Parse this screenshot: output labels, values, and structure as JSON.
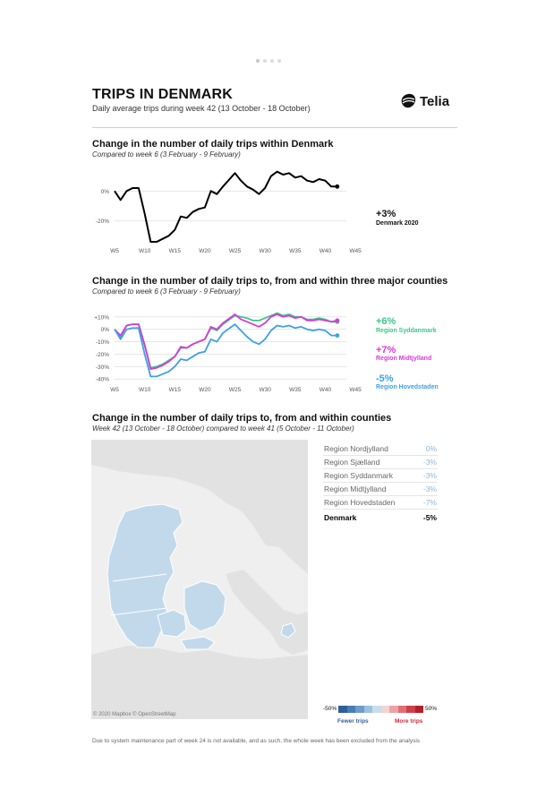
{
  "page": {
    "title": "TRIPS IN DENMARK",
    "subtitle": "Daily average trips during week 42 (13 October - 18 October)",
    "brand": "Telia",
    "footnote": "Due to system maintenance part of week 24 is not available, and as such, the whole week has been excluded from the analysis"
  },
  "section1": {
    "title": "Change in the number of daily trips within Denmark",
    "subtitle": "Compared to week 6 (3 February - 9 February)",
    "callout_value": "+3%",
    "callout_label": "Denmark 2020"
  },
  "section2": {
    "title": "Change in the number of daily trips to, from and within three major counties",
    "subtitle": "Compared to week 6 (3 February - 9 February)",
    "callouts": [
      {
        "value": "+6%",
        "label": "Region Syddanmark",
        "color": "#3dc68a"
      },
      {
        "value": "+7%",
        "label": "Region Midtjylland",
        "color": "#d63bd6"
      },
      {
        "value": "-5%",
        "label": "Region Hovedstaden",
        "color": "#3ea0e6"
      }
    ]
  },
  "section3": {
    "title": "Change in the number of daily trips to, from and within counties",
    "subtitle": "Week 42 (13 October - 18 October) compared to week 41 (5 October - 11 October)",
    "map_attribution": "© 2020 Mapbox © OpenStreetMap",
    "table": [
      {
        "name": "Region Nordjylland",
        "value": "0%"
      },
      {
        "name": "Region Sjælland",
        "value": "-3%"
      },
      {
        "name": "Region Syddanmark",
        "value": "-3%"
      },
      {
        "name": "Region Midtjylland",
        "value": "-3%"
      },
      {
        "name": "Region Hovedstaden",
        "value": "-7%"
      }
    ],
    "total": {
      "name": "Denmark",
      "value": "-5%"
    },
    "legend": {
      "min": "-50%",
      "max": "50%",
      "fewer": "Fewer trips",
      "more": "More trips",
      "colors": [
        "#2f5f9a",
        "#4a7cb4",
        "#6e9ccb",
        "#9cc0df",
        "#c9dcec",
        "#f4d3d3",
        "#eba3a6",
        "#df6f76",
        "#cf3f4a",
        "#b51f2c"
      ]
    }
  },
  "chart_data": [
    {
      "type": "line",
      "title": "Change in the number of daily trips within Denmark",
      "x": [
        5,
        6,
        7,
        8,
        9,
        10,
        11,
        12,
        13,
        14,
        15,
        16,
        17,
        18,
        19,
        20,
        21,
        22,
        23,
        25,
        26,
        27,
        28,
        29,
        30,
        31,
        32,
        33,
        34,
        35,
        36,
        37,
        38,
        39,
        40,
        41,
        42
      ],
      "x_ticks": [
        "W5",
        "W10",
        "W15",
        "W20",
        "W25",
        "W30",
        "W35",
        "W40",
        "W45"
      ],
      "x_tick_values": [
        5,
        10,
        15,
        20,
        25,
        30,
        35,
        40,
        45
      ],
      "y_ticks": [
        "0%",
        "-20%"
      ],
      "y_tick_values": [
        0,
        -20
      ],
      "xlim": [
        5,
        45
      ],
      "ylim": [
        -34,
        14
      ],
      "series": [
        {
          "name": "Denmark 2020",
          "color": "#000000",
          "values": [
            0,
            -6,
            0,
            2,
            2,
            -15,
            -34,
            -34,
            -32,
            -30,
            -26,
            -17,
            -18,
            -14,
            -12,
            -11,
            0,
            -2,
            3,
            12,
            7,
            3,
            1,
            -2,
            2,
            10,
            13,
            11,
            12,
            9,
            10,
            7,
            6,
            8,
            7,
            3,
            3
          ]
        }
      ]
    },
    {
      "type": "line",
      "title": "Change in the number of daily trips to, from and within three major counties",
      "x": [
        5,
        6,
        7,
        8,
        9,
        10,
        11,
        12,
        13,
        14,
        15,
        16,
        17,
        18,
        19,
        20,
        21,
        22,
        23,
        25,
        26,
        27,
        28,
        29,
        30,
        31,
        32,
        33,
        34,
        35,
        36,
        37,
        38,
        39,
        40,
        41,
        42
      ],
      "x_ticks": [
        "W5",
        "W10",
        "W15",
        "W20",
        "W25",
        "W30",
        "W35",
        "W40",
        "W45"
      ],
      "x_tick_values": [
        5,
        10,
        15,
        20,
        25,
        30,
        35,
        40,
        45
      ],
      "y_ticks": [
        "+10%",
        "0%",
        "-10%",
        "-20%",
        "-30%",
        "-40%"
      ],
      "y_tick_values": [
        10,
        0,
        -10,
        -20,
        -30,
        -40
      ],
      "xlim": [
        5,
        45
      ],
      "ylim": [
        -42,
        12
      ],
      "series": [
        {
          "name": "Region Syddanmark",
          "color": "#3dc68a",
          "values": [
            0,
            -6,
            3,
            4,
            4,
            -12,
            -31,
            -30,
            -28,
            -25,
            -22,
            -15,
            -15,
            -12,
            -10,
            -8,
            1,
            -1,
            4,
            11,
            10,
            9,
            7,
            7,
            9,
            11,
            13,
            11,
            12,
            10,
            10,
            8,
            8,
            9,
            8,
            6,
            6
          ]
        },
        {
          "name": "Region Midtjylland",
          "color": "#d63bd6",
          "values": [
            0,
            -5,
            3,
            4,
            4,
            -13,
            -32,
            -31,
            -29,
            -26,
            -22,
            -14,
            -15,
            -12,
            -10,
            -8,
            2,
            0,
            5,
            12,
            8,
            6,
            4,
            2,
            5,
            10,
            12,
            10,
            11,
            9,
            10,
            7,
            7,
            8,
            7,
            6,
            7
          ]
        },
        {
          "name": "Region Hovedstaden",
          "color": "#3ea0e6",
          "values": [
            0,
            -8,
            0,
            1,
            1,
            -20,
            -38,
            -38,
            -36,
            -34,
            -30,
            -24,
            -25,
            -22,
            -19,
            -18,
            -8,
            -10,
            -3,
            4,
            -1,
            -6,
            -10,
            -12,
            -8,
            -1,
            3,
            2,
            3,
            1,
            2,
            0,
            -1,
            0,
            -1,
            -5,
            -5
          ]
        }
      ]
    }
  ]
}
